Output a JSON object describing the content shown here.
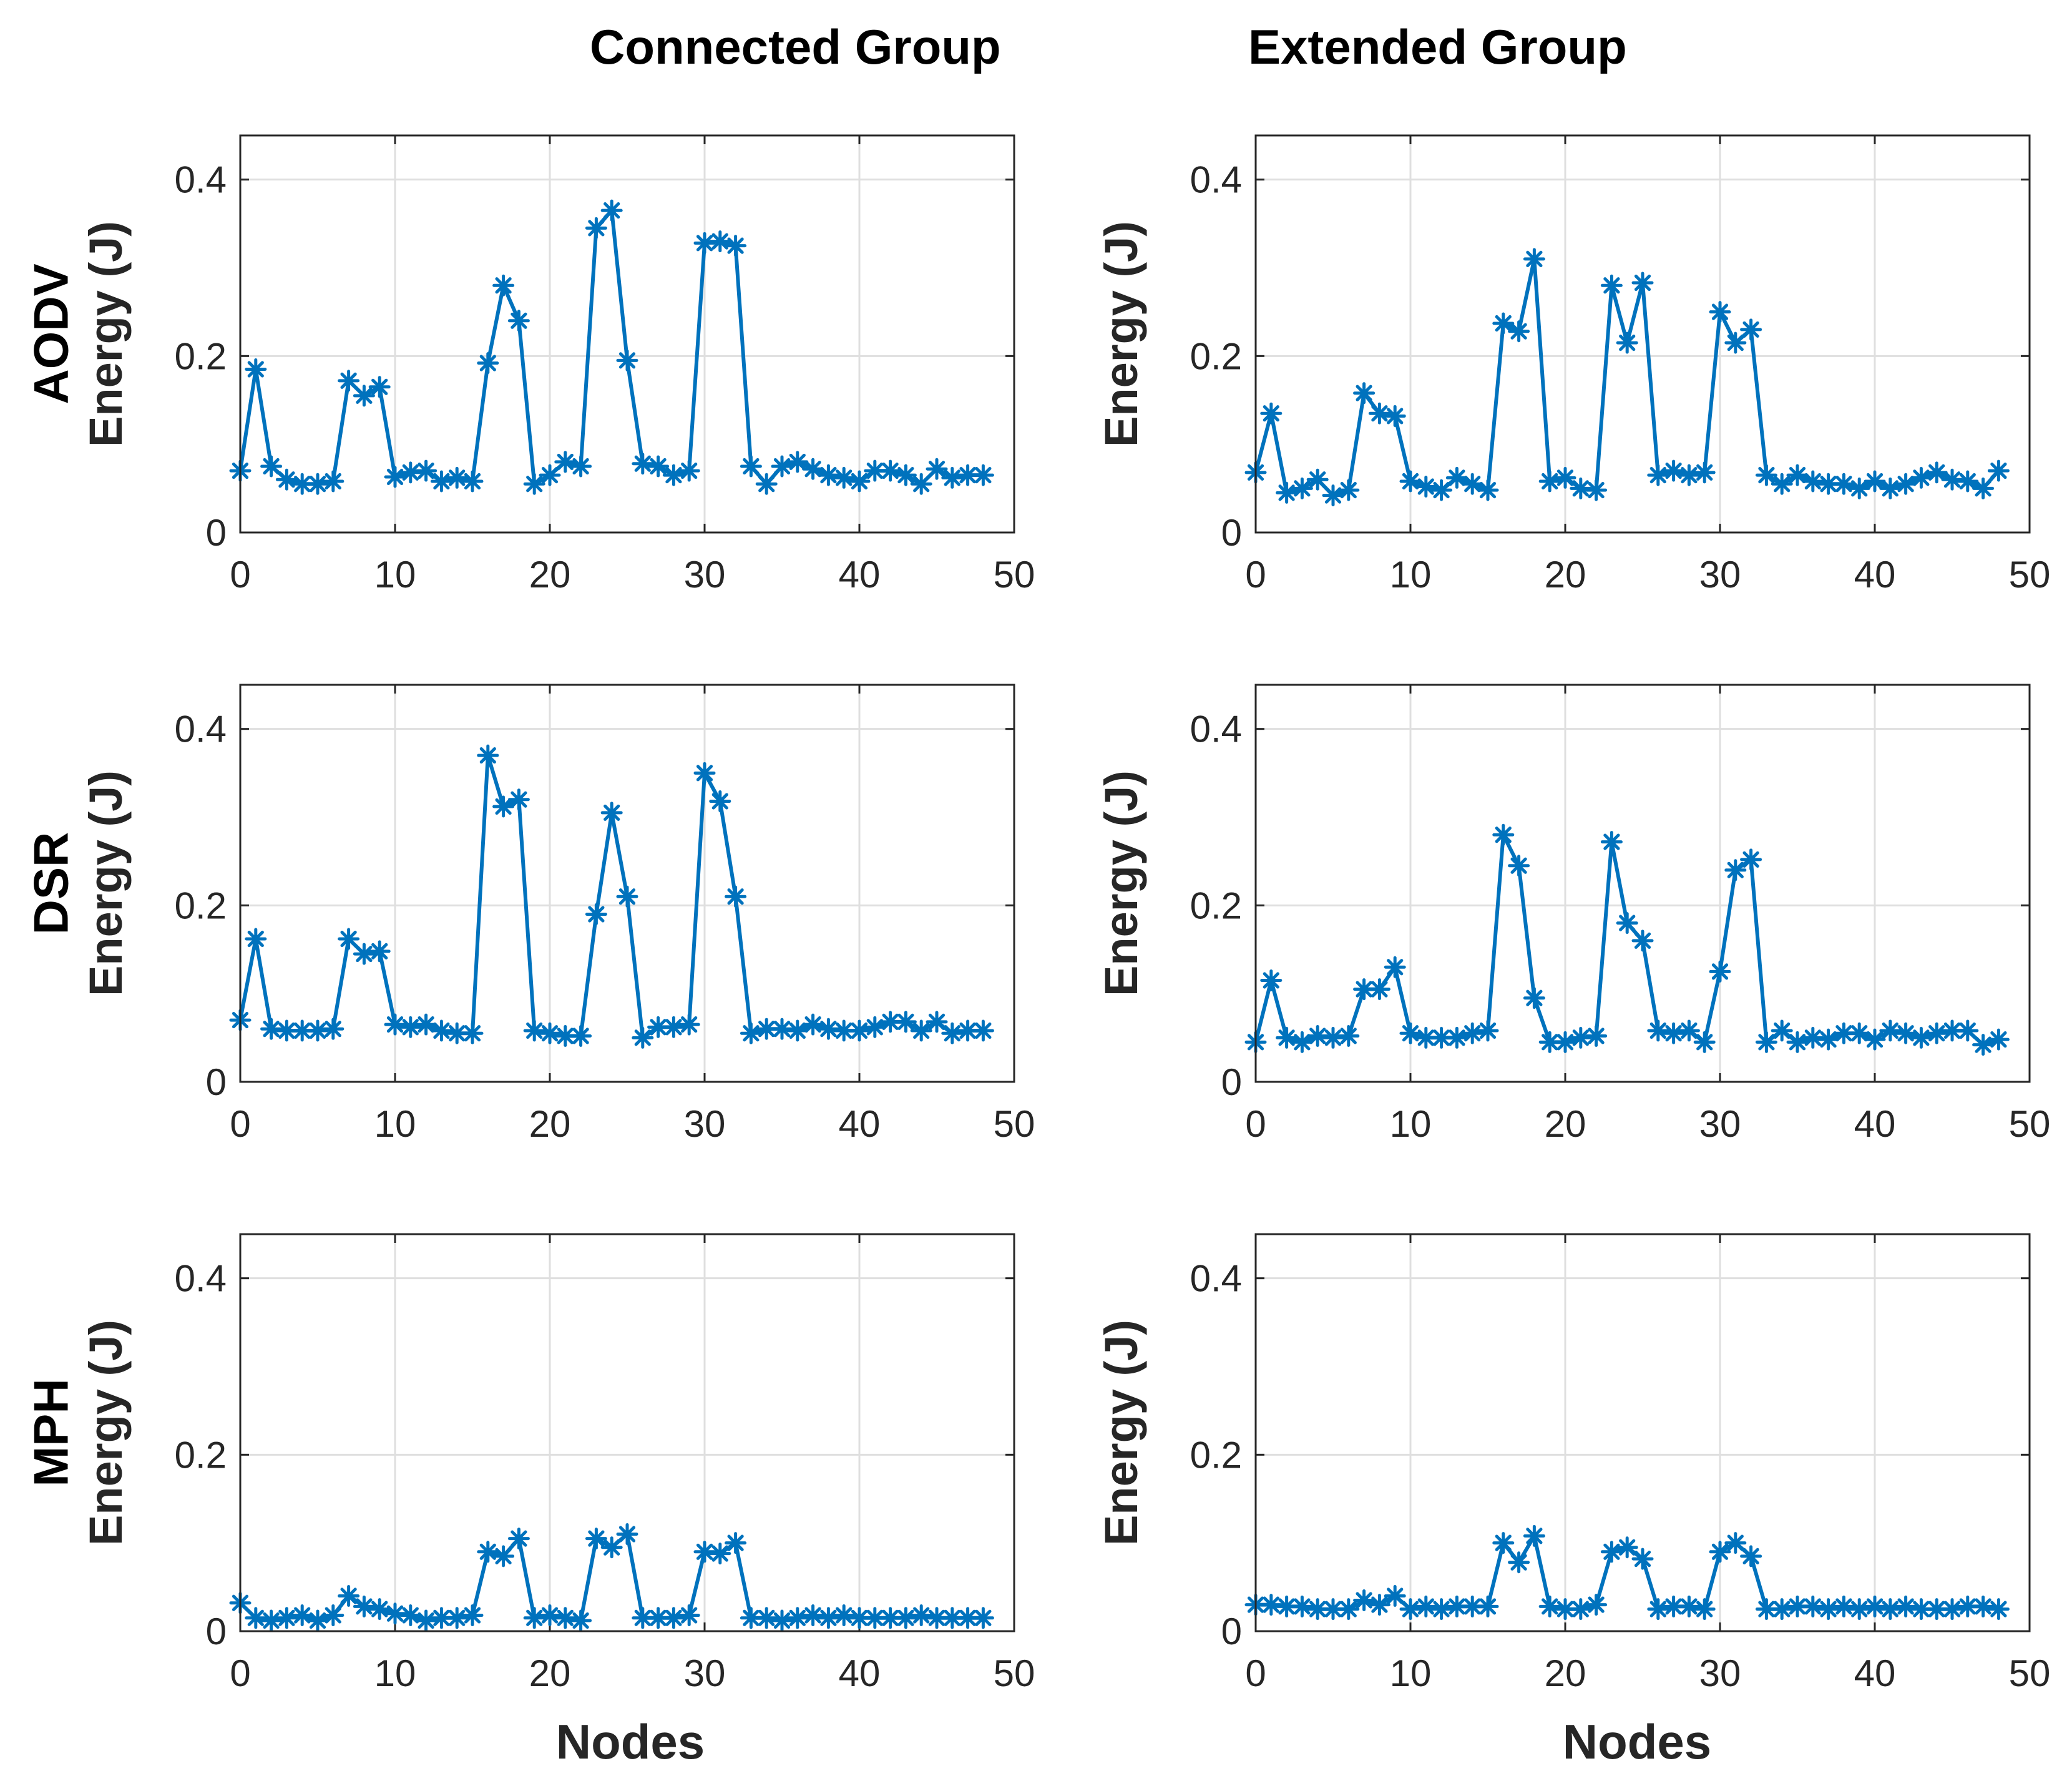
{
  "titles": {
    "columns": [
      "Connected Group",
      "Extended Group"
    ],
    "rows": [
      "AODV",
      "DSR",
      "MPH"
    ],
    "xlabel": "Nodes",
    "ylabel": "Energy (J)"
  },
  "colors": {
    "series": "#0072BD",
    "grid": "#DFDFDF",
    "axis": "#262626"
  },
  "chart_data": [
    {
      "type": "line",
      "protocol": "AODV",
      "group": "Connected Group",
      "xlabel": "Nodes",
      "ylabel": "Energy (J)",
      "xlim": [
        0,
        50
      ],
      "ylim": [
        0,
        0.45
      ],
      "xticks": [
        0,
        10,
        20,
        30,
        40,
        50
      ],
      "yticks": [
        0,
        0.2,
        0.4
      ],
      "yticklabels": [
        "0",
        "0.2",
        "0.4"
      ],
      "grid": true,
      "marker": "asterisk",
      "x": [
        0,
        1,
        2,
        3,
        4,
        5,
        6,
        7,
        8,
        9,
        10,
        11,
        12,
        13,
        14,
        15,
        16,
        17,
        18,
        19,
        20,
        21,
        22,
        23,
        24,
        25,
        26,
        27,
        28,
        29,
        30,
        31,
        32,
        33,
        34,
        35,
        36,
        37,
        38,
        39,
        40,
        41,
        42,
        43,
        44,
        45,
        46,
        47,
        48
      ],
      "y": [
        0.07,
        0.185,
        0.075,
        0.06,
        0.055,
        0.055,
        0.058,
        0.172,
        0.155,
        0.165,
        0.063,
        0.068,
        0.07,
        0.058,
        0.062,
        0.058,
        0.192,
        0.28,
        0.24,
        0.055,
        0.065,
        0.08,
        0.075,
        0.345,
        0.365,
        0.195,
        0.078,
        0.075,
        0.065,
        0.07,
        0.328,
        0.33,
        0.325,
        0.075,
        0.055,
        0.075,
        0.08,
        0.072,
        0.065,
        0.062,
        0.058,
        0.07,
        0.07,
        0.065,
        0.055,
        0.072,
        0.062,
        0.065,
        0.065
      ]
    },
    {
      "type": "line",
      "protocol": "AODV",
      "group": "Extended Group",
      "xlabel": "Nodes",
      "ylabel": "Energy (J)",
      "xlim": [
        0,
        50
      ],
      "ylim": [
        0,
        0.45
      ],
      "xticks": [
        0,
        10,
        20,
        30,
        40,
        50
      ],
      "yticks": [
        0,
        0.2,
        0.4
      ],
      "yticklabels": [
        "0",
        "0.2",
        "0.4"
      ],
      "grid": true,
      "marker": "asterisk",
      "x": [
        0,
        1,
        2,
        3,
        4,
        5,
        6,
        7,
        8,
        9,
        10,
        11,
        12,
        13,
        14,
        15,
        16,
        17,
        18,
        19,
        20,
        21,
        22,
        23,
        24,
        25,
        26,
        27,
        28,
        29,
        30,
        31,
        32,
        33,
        34,
        35,
        36,
        37,
        38,
        39,
        40,
        41,
        42,
        43,
        44,
        45,
        46,
        47,
        48
      ],
      "y": [
        0.068,
        0.135,
        0.045,
        0.05,
        0.06,
        0.042,
        0.048,
        0.158,
        0.135,
        0.132,
        0.058,
        0.052,
        0.048,
        0.062,
        0.055,
        0.048,
        0.237,
        0.228,
        0.31,
        0.058,
        0.062,
        0.05,
        0.048,
        0.28,
        0.215,
        0.283,
        0.065,
        0.07,
        0.065,
        0.068,
        0.25,
        0.215,
        0.23,
        0.065,
        0.055,
        0.065,
        0.058,
        0.055,
        0.055,
        0.05,
        0.058,
        0.05,
        0.055,
        0.062,
        0.068,
        0.06,
        0.058,
        0.05,
        0.07
      ]
    },
    {
      "type": "line",
      "protocol": "DSR",
      "group": "Connected Group",
      "xlabel": "Nodes",
      "ylabel": "Energy (J)",
      "xlim": [
        0,
        50
      ],
      "ylim": [
        0,
        0.45
      ],
      "xticks": [
        0,
        10,
        20,
        30,
        40,
        50
      ],
      "yticks": [
        0,
        0.2,
        0.4
      ],
      "yticklabels": [
        "0",
        "0.2",
        "0.4"
      ],
      "grid": true,
      "marker": "asterisk",
      "x": [
        0,
        1,
        2,
        3,
        4,
        5,
        6,
        7,
        8,
        9,
        10,
        11,
        12,
        13,
        14,
        15,
        16,
        17,
        18,
        19,
        20,
        21,
        22,
        23,
        24,
        25,
        26,
        27,
        28,
        29,
        30,
        31,
        32,
        33,
        34,
        35,
        36,
        37,
        38,
        39,
        40,
        41,
        42,
        43,
        44,
        45,
        46,
        47,
        48
      ],
      "y": [
        0.07,
        0.162,
        0.06,
        0.058,
        0.058,
        0.058,
        0.06,
        0.162,
        0.145,
        0.148,
        0.065,
        0.062,
        0.065,
        0.058,
        0.055,
        0.055,
        0.37,
        0.312,
        0.32,
        0.058,
        0.055,
        0.052,
        0.052,
        0.19,
        0.305,
        0.21,
        0.05,
        0.062,
        0.062,
        0.065,
        0.35,
        0.318,
        0.21,
        0.055,
        0.06,
        0.06,
        0.058,
        0.065,
        0.06,
        0.058,
        0.058,
        0.062,
        0.068,
        0.068,
        0.058,
        0.068,
        0.055,
        0.058,
        0.058
      ]
    },
    {
      "type": "line",
      "protocol": "DSR",
      "group": "Extended Group",
      "xlabel": "Nodes",
      "ylabel": "Energy (J)",
      "xlim": [
        0,
        50
      ],
      "ylim": [
        0,
        0.45
      ],
      "xticks": [
        0,
        10,
        20,
        30,
        40,
        50
      ],
      "yticks": [
        0,
        0.2,
        0.4
      ],
      "yticklabels": [
        "0",
        "0.2",
        "0.4"
      ],
      "grid": true,
      "marker": "asterisk",
      "x": [
        0,
        1,
        2,
        3,
        4,
        5,
        6,
        7,
        8,
        9,
        10,
        11,
        12,
        13,
        14,
        15,
        16,
        17,
        18,
        19,
        20,
        21,
        22,
        23,
        24,
        25,
        26,
        27,
        28,
        29,
        30,
        31,
        32,
        33,
        34,
        35,
        36,
        37,
        38,
        39,
        40,
        41,
        42,
        43,
        44,
        45,
        46,
        47,
        48
      ],
      "y": [
        0.045,
        0.115,
        0.05,
        0.045,
        0.052,
        0.05,
        0.052,
        0.105,
        0.105,
        0.13,
        0.055,
        0.05,
        0.05,
        0.05,
        0.055,
        0.058,
        0.28,
        0.245,
        0.095,
        0.045,
        0.045,
        0.05,
        0.052,
        0.272,
        0.18,
        0.16,
        0.058,
        0.055,
        0.058,
        0.045,
        0.125,
        0.24,
        0.252,
        0.045,
        0.058,
        0.045,
        0.05,
        0.048,
        0.055,
        0.055,
        0.048,
        0.058,
        0.055,
        0.05,
        0.055,
        0.058,
        0.058,
        0.042,
        0.048
      ]
    },
    {
      "type": "line",
      "protocol": "MPH",
      "group": "Connected Group",
      "xlabel": "Nodes",
      "ylabel": "Energy (J)",
      "xlim": [
        0,
        50
      ],
      "ylim": [
        0,
        0.45
      ],
      "xticks": [
        0,
        10,
        20,
        30,
        40,
        50
      ],
      "yticks": [
        0,
        0.2,
        0.4
      ],
      "yticklabels": [
        "0",
        "0.2",
        "0.4"
      ],
      "grid": true,
      "marker": "asterisk",
      "x": [
        0,
        1,
        2,
        3,
        4,
        5,
        6,
        7,
        8,
        9,
        10,
        11,
        12,
        13,
        14,
        15,
        16,
        17,
        18,
        19,
        20,
        21,
        22,
        23,
        24,
        25,
        26,
        27,
        28,
        29,
        30,
        31,
        32,
        33,
        34,
        35,
        36,
        37,
        38,
        39,
        40,
        41,
        42,
        43,
        44,
        45,
        46,
        47,
        48
      ],
      "y": [
        0.032,
        0.015,
        0.012,
        0.015,
        0.018,
        0.012,
        0.018,
        0.04,
        0.028,
        0.025,
        0.02,
        0.018,
        0.012,
        0.015,
        0.015,
        0.018,
        0.09,
        0.085,
        0.105,
        0.015,
        0.018,
        0.015,
        0.012,
        0.105,
        0.095,
        0.11,
        0.015,
        0.015,
        0.015,
        0.018,
        0.09,
        0.088,
        0.1,
        0.015,
        0.015,
        0.012,
        0.015,
        0.018,
        0.015,
        0.018,
        0.015,
        0.015,
        0.015,
        0.015,
        0.018,
        0.015,
        0.015,
        0.015,
        0.015
      ]
    },
    {
      "type": "line",
      "protocol": "MPH",
      "group": "Extended Group",
      "xlabel": "Nodes",
      "ylabel": "Energy (J)",
      "xlim": [
        0,
        50
      ],
      "ylim": [
        0,
        0.45
      ],
      "xticks": [
        0,
        10,
        20,
        30,
        40,
        50
      ],
      "yticks": [
        0,
        0.2,
        0.4
      ],
      "yticklabels": [
        "0",
        "0.2",
        "0.4"
      ],
      "grid": true,
      "marker": "asterisk",
      "x": [
        0,
        1,
        2,
        3,
        4,
        5,
        6,
        7,
        8,
        9,
        10,
        11,
        12,
        13,
        14,
        15,
        16,
        17,
        18,
        19,
        20,
        21,
        22,
        23,
        24,
        25,
        26,
        27,
        28,
        29,
        30,
        31,
        32,
        33,
        34,
        35,
        36,
        37,
        38,
        39,
        40,
        41,
        42,
        43,
        44,
        45,
        46,
        47,
        48
      ],
      "y": [
        0.03,
        0.03,
        0.028,
        0.028,
        0.025,
        0.025,
        0.025,
        0.035,
        0.03,
        0.04,
        0.025,
        0.028,
        0.025,
        0.028,
        0.028,
        0.028,
        0.1,
        0.078,
        0.108,
        0.028,
        0.025,
        0.025,
        0.03,
        0.09,
        0.095,
        0.082,
        0.025,
        0.028,
        0.028,
        0.025,
        0.09,
        0.1,
        0.085,
        0.025,
        0.025,
        0.028,
        0.028,
        0.025,
        0.028,
        0.025,
        0.028,
        0.025,
        0.028,
        0.025,
        0.025,
        0.025,
        0.028,
        0.028,
        0.025
      ]
    }
  ]
}
